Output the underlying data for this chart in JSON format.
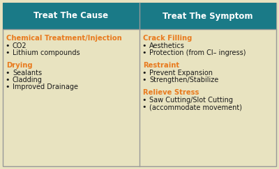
{
  "header_bg": "#1a7a87",
  "header_text_color": "#ffffff",
  "body_bg": "#e8e3c0",
  "orange_color": "#e87a1e",
  "black_color": "#1a1a1a",
  "border_color": "#999999",
  "col1_header": "Treat The Cause",
  "col2_header": "Treat The Symptom",
  "col1_sections": [
    {
      "title": "Chemical Treatment/Injection",
      "bullets": [
        "CO2",
        "Lithium compounds"
      ]
    },
    {
      "title": "Drying",
      "bullets": [
        "Sealants",
        "Cladding",
        "Improved Drainage"
      ]
    }
  ],
  "col2_sections": [
    {
      "title": "Crack Filling",
      "bullets": [
        "Aesthetics",
        "Protection (from Cl– ingress)"
      ]
    },
    {
      "title": "Restraint",
      "bullets": [
        "Prevent Expansion",
        "Strengthen/Stabilize"
      ]
    },
    {
      "title": "Relieve Stress",
      "bullets": [
        "Saw Cutting/Slot Cutting",
        "(accommodate movement)"
      ]
    }
  ],
  "header_fontsize": 8.5,
  "title_fontsize": 7.2,
  "bullet_fontsize": 7.0,
  "fig_width": 4.0,
  "fig_height": 2.43,
  "dpi": 100
}
